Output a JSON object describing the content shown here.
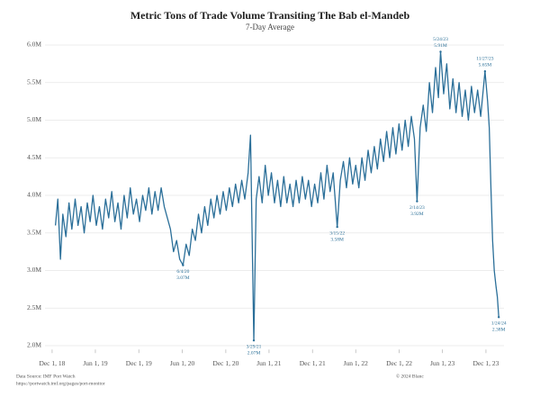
{
  "chart_data": {
    "type": "line",
    "title": "Metric Tons of Trade Volume Transiting The Bab el-Mandeb",
    "subtitle": "7-Day Average",
    "source": "Data Source: IMF Port Watch",
    "source_url": "https://portwatch.imf.org/pages/port-monitor",
    "copyright": "© 2024 Blanc",
    "color": "#2b6f99",
    "grid": true,
    "ylim": [
      1950000,
      6050000
    ],
    "yticks": [
      {
        "value": 2000000,
        "label": "2.0M"
      },
      {
        "value": 2500000,
        "label": "2.5M"
      },
      {
        "value": 3000000,
        "label": "3.0M"
      },
      {
        "value": 3500000,
        "label": "3.5M"
      },
      {
        "value": 4000000,
        "label": "4.0M"
      },
      {
        "value": 4500000,
        "label": "4.5M"
      },
      {
        "value": 5000000,
        "label": "5.0M"
      },
      {
        "value": 5500000,
        "label": "5.5M"
      },
      {
        "value": 6000000,
        "label": "6.0M"
      }
    ],
    "xlim": [
      "2018-11-01",
      "2024-02-15"
    ],
    "xticks": [
      {
        "value": "2018-12-01",
        "label": "Dec 1, 18"
      },
      {
        "value": "2019-06-01",
        "label": "Jun 1, 19"
      },
      {
        "value": "2019-12-01",
        "label": "Dec 1, 19"
      },
      {
        "value": "2020-06-01",
        "label": "Jun 1, 20"
      },
      {
        "value": "2020-12-01",
        "label": "Dec 1, 20"
      },
      {
        "value": "2021-06-01",
        "label": "Jun 1, 21"
      },
      {
        "value": "2021-12-01",
        "label": "Dec 1, 21"
      },
      {
        "value": "2022-06-01",
        "label": "Jun 1, 22"
      },
      {
        "value": "2022-12-01",
        "label": "Dec 1, 22"
      },
      {
        "value": "2023-06-01",
        "label": "Jun 1, 23"
      },
      {
        "value": "2023-12-01",
        "label": "Dec 1, 23"
      }
    ],
    "x": [
      "2018-12-15",
      "2018-12-25",
      "2019-01-05",
      "2019-01-15",
      "2019-01-28",
      "2019-02-10",
      "2019-02-22",
      "2019-03-08",
      "2019-03-20",
      "2019-04-02",
      "2019-04-15",
      "2019-04-28",
      "2019-05-10",
      "2019-05-22",
      "2019-06-05",
      "2019-06-18",
      "2019-07-01",
      "2019-07-14",
      "2019-07-27",
      "2019-08-09",
      "2019-08-22",
      "2019-09-04",
      "2019-09-17",
      "2019-09-30",
      "2019-10-13",
      "2019-10-26",
      "2019-11-08",
      "2019-11-21",
      "2019-12-04",
      "2019-12-17",
      "2019-12-30",
      "2020-01-12",
      "2020-01-25",
      "2020-02-07",
      "2020-02-20",
      "2020-03-04",
      "2020-03-17",
      "2020-03-30",
      "2020-04-12",
      "2020-04-25",
      "2020-05-08",
      "2020-05-21",
      "2020-06-04",
      "2020-06-17",
      "2020-06-30",
      "2020-07-13",
      "2020-07-26",
      "2020-08-08",
      "2020-08-21",
      "2020-09-03",
      "2020-09-16",
      "2020-09-29",
      "2020-10-12",
      "2020-10-25",
      "2020-11-07",
      "2020-11-20",
      "2020-12-03",
      "2020-12-16",
      "2020-12-29",
      "2021-01-11",
      "2021-01-24",
      "2021-02-06",
      "2021-02-19",
      "2021-03-05",
      "2021-03-15",
      "2021-03-29",
      "2021-04-08",
      "2021-04-20",
      "2021-05-03",
      "2021-05-16",
      "2021-05-29",
      "2021-06-11",
      "2021-06-24",
      "2021-07-07",
      "2021-07-20",
      "2021-08-02",
      "2021-08-15",
      "2021-08-28",
      "2021-09-10",
      "2021-09-23",
      "2021-10-06",
      "2021-10-19",
      "2021-11-01",
      "2021-11-14",
      "2021-11-27",
      "2021-12-10",
      "2021-12-23",
      "2022-01-05",
      "2022-01-18",
      "2022-01-31",
      "2022-02-13",
      "2022-02-26",
      "2022-03-15",
      "2022-03-28",
      "2022-04-10",
      "2022-04-23",
      "2022-05-06",
      "2022-05-19",
      "2022-06-01",
      "2022-06-14",
      "2022-06-27",
      "2022-07-10",
      "2022-07-23",
      "2022-08-05",
      "2022-08-18",
      "2022-08-31",
      "2022-09-13",
      "2022-09-26",
      "2022-10-09",
      "2022-10-22",
      "2022-11-04",
      "2022-11-17",
      "2022-11-30",
      "2022-12-13",
      "2022-12-26",
      "2023-01-08",
      "2023-01-21",
      "2023-02-03",
      "2023-02-14",
      "2023-02-27",
      "2023-03-12",
      "2023-03-25",
      "2023-04-07",
      "2023-04-20",
      "2023-05-03",
      "2023-05-15",
      "2023-05-24",
      "2023-06-06",
      "2023-06-19",
      "2023-07-02",
      "2023-07-15",
      "2023-07-28",
      "2023-08-10",
      "2023-08-23",
      "2023-09-05",
      "2023-09-18",
      "2023-10-01",
      "2023-10-14",
      "2023-10-27",
      "2023-11-09",
      "2023-11-27",
      "2023-12-08",
      "2023-12-15",
      "2023-12-22",
      "2023-12-29",
      "2024-01-05",
      "2024-01-12",
      "2024-01-18",
      "2024-01-24"
    ],
    "series": [
      {
        "values": [
          3600000,
          3950000,
          3150000,
          3750000,
          3450000,
          3900000,
          3550000,
          3950000,
          3600000,
          3850000,
          3500000,
          3900000,
          3650000,
          4000000,
          3600000,
          3850000,
          3550000,
          3950000,
          3700000,
          4050000,
          3650000,
          3900000,
          3550000,
          4000000,
          3700000,
          4100000,
          3750000,
          3950000,
          3650000,
          4000000,
          3800000,
          4100000,
          3750000,
          4050000,
          3800000,
          4100000,
          3850000,
          3700000,
          3550000,
          3250000,
          3400000,
          3150000,
          3070000,
          3350000,
          3200000,
          3550000,
          3400000,
          3750000,
          3500000,
          3850000,
          3600000,
          3950000,
          3700000,
          4000000,
          3750000,
          4050000,
          3800000,
          4100000,
          3850000,
          4150000,
          3900000,
          4200000,
          3950000,
          4300000,
          4800000,
          2070000,
          3950000,
          4250000,
          3900000,
          4400000,
          4000000,
          4300000,
          3900000,
          4200000,
          3850000,
          4250000,
          3900000,
          4150000,
          3850000,
          4200000,
          3900000,
          4250000,
          3950000,
          4200000,
          3850000,
          4150000,
          3900000,
          4300000,
          3950000,
          4400000,
          4050000,
          4300000,
          3580000,
          4200000,
          4450000,
          4100000,
          4500000,
          4150000,
          4400000,
          4100000,
          4500000,
          4200000,
          4600000,
          4300000,
          4650000,
          4350000,
          4750000,
          4450000,
          4850000,
          4500000,
          4900000,
          4550000,
          4950000,
          4600000,
          5000000,
          4650000,
          5050000,
          4750000,
          3920000,
          4900000,
          5200000,
          4850000,
          5500000,
          5100000,
          5700000,
          5300000,
          5910000,
          5350000,
          5750000,
          5150000,
          5550000,
          5100000,
          5500000,
          5050000,
          5400000,
          5000000,
          5450000,
          5100000,
          5400000,
          5050000,
          5650000,
          5250000,
          4900000,
          4100000,
          3400000,
          3000000,
          2800000,
          2650000,
          2380000
        ]
      }
    ],
    "annotations": [
      {
        "x": "2020-06-04",
        "y": 3070000,
        "label": "6/4/20",
        "value_label": "3.07M"
      },
      {
        "x": "2021-03-29",
        "y": 2070000,
        "label": "3/29/21",
        "value_label": "2.07M"
      },
      {
        "x": "2022-03-15",
        "y": 3580000,
        "label": "3/15/22",
        "value_label": "3.58M"
      },
      {
        "x": "2023-02-14",
        "y": 3920000,
        "label": "2/14/23",
        "value_label": "3.92M"
      },
      {
        "x": "2023-05-24",
        "y": 5910000,
        "label": "5/24/23",
        "value_label": "5.91M"
      },
      {
        "x": "2023-11-27",
        "y": 5650000,
        "label": "11/27/23",
        "value_label": "5.65M"
      },
      {
        "x": "2024-01-24",
        "y": 2380000,
        "label": "1/24/24",
        "value_label": "2.38M"
      }
    ]
  }
}
